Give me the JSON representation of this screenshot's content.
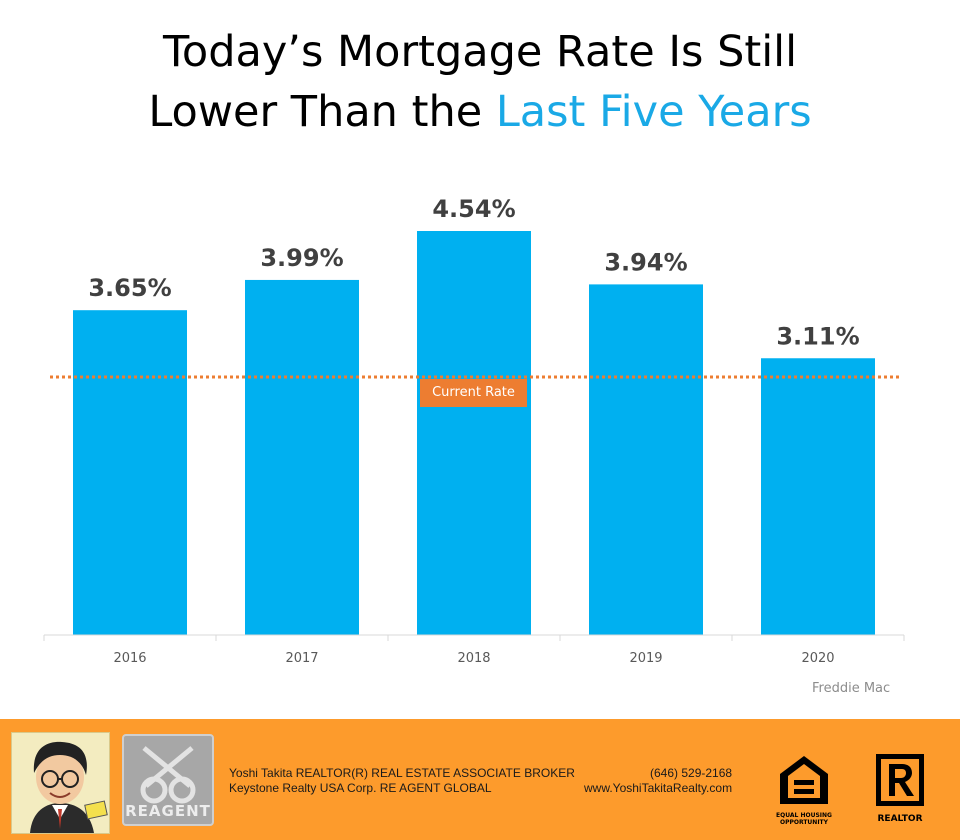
{
  "title": {
    "line1": "Today’s Mortgage Rate Is Still",
    "line2_plain": "Lower Than the ",
    "line2_accent": "Last Five Years"
  },
  "colors": {
    "bar": "#00b0f0",
    "accent_text": "#1aa9e6",
    "current_rate_line": "#ed7d31",
    "footer_background": "#fd9b2c"
  },
  "chart_data": {
    "type": "bar",
    "title": "Today’s Mortgage Rate Is Still Lower Than the Last Five Years",
    "categories": [
      "2016",
      "2017",
      "2018",
      "2019",
      "2020"
    ],
    "values": [
      3.65,
      3.99,
      4.54,
      3.94,
      3.11
    ],
    "data_labels": [
      "3.65%",
      "3.99%",
      "4.54%",
      "3.94%",
      "3.11%"
    ],
    "ylim": [
      0,
      4.54
    ],
    "grid": false,
    "reference_line": {
      "label": "Current Rate",
      "value": 2.9,
      "style": "dotted"
    },
    "source": "Freddie Mac"
  },
  "footer": {
    "line1_left": "Yoshi Takita REALTOR(R) REAL ESTATE ASSOCIATE BROKER",
    "line1_right": "(646) 529-2168",
    "line2_left": "Keystone Realty USA Corp.  RE AGENT GLOBAL",
    "line2_right": "www.YoshiTakitaRealty.com",
    "logo_reagent": "REAGENT",
    "logo_equal_housing": "EQUAL HOUSING OPPORTUNITY",
    "logo_realtor": "REALTOR"
  }
}
